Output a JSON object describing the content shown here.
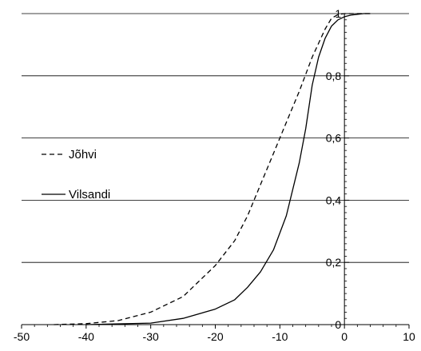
{
  "chart_data": {
    "type": "line",
    "title": "",
    "xlabel": "",
    "ylabel": "",
    "xlim": [
      -50,
      10
    ],
    "ylim": [
      0,
      1
    ],
    "grid": "horizontal",
    "legend_position": "center-left",
    "x_ticks": [
      -50,
      -40,
      -30,
      -20,
      -10,
      0,
      10
    ],
    "x_tick_labels": [
      "-50",
      "-40",
      "-30",
      "-20",
      "-10",
      "0",
      "10"
    ],
    "y_ticks": [
      0,
      0.2,
      0.4,
      0.6,
      0.8,
      1
    ],
    "y_tick_labels": [
      "0",
      "0,2",
      "0,4",
      "0,6",
      "0,8",
      "1"
    ],
    "series": [
      {
        "name": "Jõhvi",
        "style": "dashed",
        "color": "#000000",
        "points": [
          [
            -45,
            0
          ],
          [
            -40,
            0.003
          ],
          [
            -35,
            0.013
          ],
          [
            -30,
            0.04
          ],
          [
            -25,
            0.09
          ],
          [
            -20,
            0.19
          ],
          [
            -17,
            0.27
          ],
          [
            -15,
            0.35
          ],
          [
            -13,
            0.45
          ],
          [
            -11,
            0.55
          ],
          [
            -9,
            0.65
          ],
          [
            -7,
            0.75
          ],
          [
            -5,
            0.86
          ],
          [
            -3,
            0.95
          ],
          [
            -2,
            0.985
          ],
          [
            -1,
            0.997
          ],
          [
            0,
            1
          ],
          [
            4,
            1
          ]
        ]
      },
      {
        "name": "Vilsandi",
        "style": "solid",
        "color": "#000000",
        "points": [
          [
            -40,
            0
          ],
          [
            -30,
            0.005
          ],
          [
            -25,
            0.02
          ],
          [
            -20,
            0.05
          ],
          [
            -17,
            0.08
          ],
          [
            -15,
            0.12
          ],
          [
            -13,
            0.17
          ],
          [
            -11,
            0.24
          ],
          [
            -9,
            0.35
          ],
          [
            -7,
            0.52
          ],
          [
            -6,
            0.63
          ],
          [
            -5,
            0.77
          ],
          [
            -4,
            0.86
          ],
          [
            -3,
            0.92
          ],
          [
            -2,
            0.96
          ],
          [
            -1,
            0.98
          ],
          [
            0,
            0.99
          ],
          [
            1,
            0.995
          ],
          [
            3,
            1
          ],
          [
            4,
            1
          ]
        ]
      }
    ]
  }
}
